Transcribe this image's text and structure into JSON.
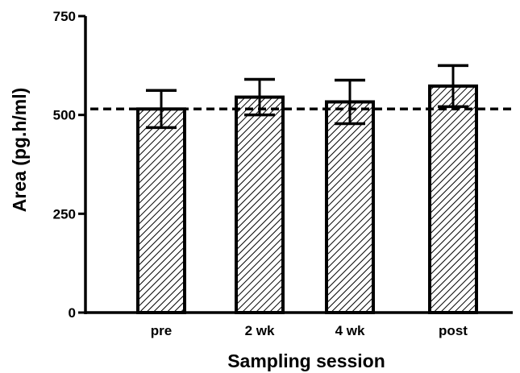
{
  "chart_data": {
    "type": "bar",
    "categories": [
      "pre",
      "2 wk",
      "4 wk",
      "post"
    ],
    "values": [
      515,
      545,
      533,
      573
    ],
    "error": [
      47,
      45,
      55,
      52
    ],
    "reference_line": 515,
    "title": "",
    "xlabel": "Sampling session",
    "ylabel": "Area (pg.h/ml)",
    "ylim": [
      0,
      750
    ],
    "yticks": [
      0,
      250,
      500,
      750
    ],
    "bar_pattern": "diagonal-hatch",
    "grid": false,
    "legend": "none"
  },
  "colors": {
    "ink": "#000000",
    "bar_fill": "#ffffff",
    "background": "#ffffff"
  }
}
